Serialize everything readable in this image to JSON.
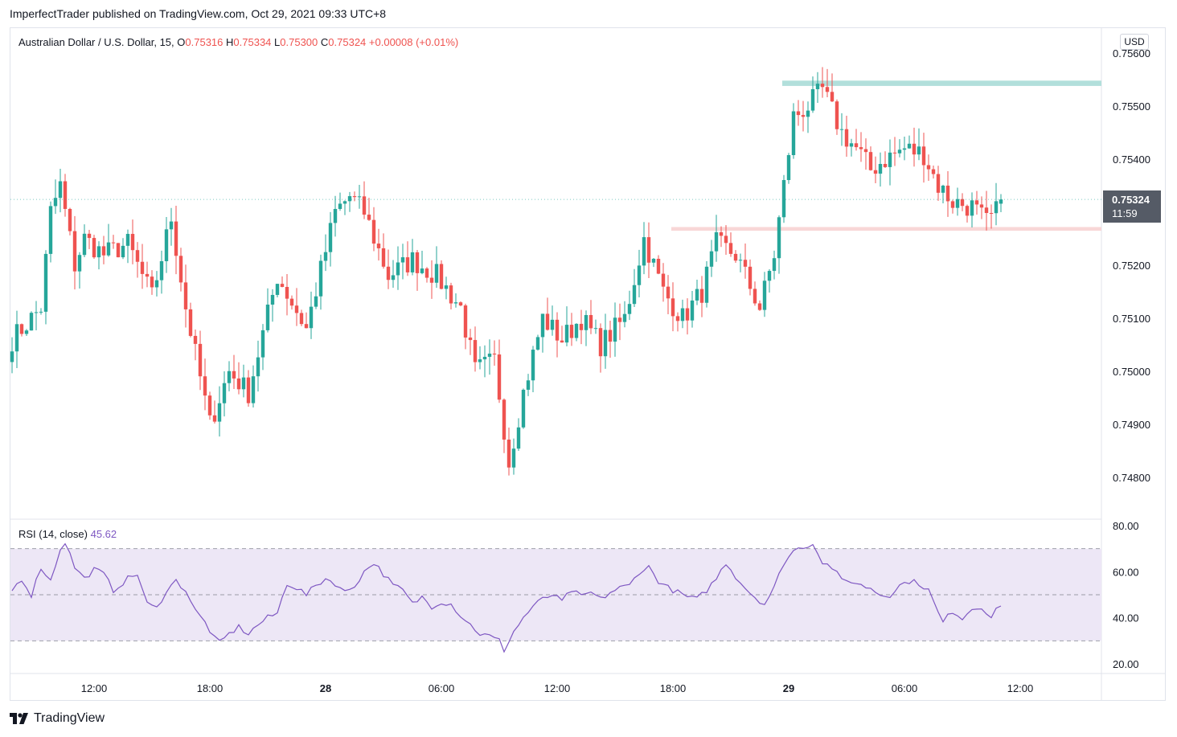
{
  "header": {
    "published_by": "ImperfectTrader published on TradingView.com, Oct 29, 2021 09:33 UTC+8"
  },
  "legend": {
    "symbol": "Australian Dollar / U.S. Dollar, 15,",
    "o_label": "O",
    "o_value": "0.75316",
    "h_label": "H",
    "h_value": "0.75334",
    "l_label": "L",
    "l_value": "0.75300",
    "c_label": "C",
    "c_value": "0.75324",
    "change": "+0.00008 (+0.01%)"
  },
  "currency": "USD",
  "last_price": {
    "price": "0.75324",
    "countdown": "11:59"
  },
  "rsi": {
    "label": "RSI (14, close)",
    "value": "45.62"
  },
  "footer": {
    "brand": "TradingView"
  },
  "colors": {
    "up": "#26a69a",
    "down": "#ef5350",
    "rsi_line": "#7e57c2",
    "rsi_band": "#ede7f6",
    "resistance_zone": "#b2dfdb",
    "support_zone": "#f8d7d7"
  },
  "chart_data": [
    {
      "type": "candlestick",
      "interval": "15",
      "ylim": [
        0.7476,
        0.7561
      ],
      "y_ticks": [
        "0.75600",
        "0.75500",
        "0.75400",
        "0.75300",
        "0.75200",
        "0.75100",
        "0.75000",
        "0.74900",
        "0.74800"
      ],
      "x_ticks": [
        {
          "label": "12:00",
          "i": 17
        },
        {
          "label": "18:00",
          "i": 41
        },
        {
          "label": "28",
          "i": 65,
          "bold": true
        },
        {
          "label": "06:00",
          "i": 89
        },
        {
          "label": "12:00",
          "i": 113
        },
        {
          "label": "18:00",
          "i": 137
        },
        {
          "label": "29",
          "i": 161,
          "bold": true
        },
        {
          "label": "06:00",
          "i": 185
        },
        {
          "label": "12:00",
          "i": 209
        }
      ],
      "zones": [
        {
          "name": "resistance",
          "from": 0.75538,
          "to": 0.75548,
          "start_i": 160
        },
        {
          "name": "support",
          "from": 0.75265,
          "to": 0.75272,
          "start_i": 137
        }
      ],
      "anchors": [
        [
          0,
          0.7506
        ],
        [
          6,
          0.7512
        ],
        [
          8,
          0.753
        ],
        [
          10,
          0.7535
        ],
        [
          13,
          0.752
        ],
        [
          15,
          0.7525
        ],
        [
          19,
          0.7522
        ],
        [
          24,
          0.7524
        ],
        [
          29,
          0.7514
        ],
        [
          33,
          0.7529
        ],
        [
          36,
          0.7512
        ],
        [
          41,
          0.749
        ],
        [
          45,
          0.75
        ],
        [
          49,
          0.7496
        ],
        [
          55,
          0.7518
        ],
        [
          61,
          0.7508
        ],
        [
          67,
          0.753
        ],
        [
          70,
          0.7533
        ],
        [
          73,
          0.753
        ],
        [
          78,
          0.7518
        ],
        [
          83,
          0.7521
        ],
        [
          88,
          0.7518
        ],
        [
          93,
          0.7512
        ],
        [
          96,
          0.75
        ],
        [
          100,
          0.7502
        ],
        [
          103,
          0.7483
        ],
        [
          106,
          0.7496
        ],
        [
          110,
          0.751
        ],
        [
          114,
          0.7506
        ],
        [
          118,
          0.751
        ],
        [
          122,
          0.7505
        ],
        [
          127,
          0.751
        ],
        [
          131,
          0.7525
        ],
        [
          135,
          0.7515
        ],
        [
          139,
          0.751
        ],
        [
          143,
          0.7515
        ],
        [
          146,
          0.7524
        ],
        [
          150,
          0.7522
        ],
        [
          155,
          0.7512
        ],
        [
          158,
          0.7522
        ],
        [
          160,
          0.7535
        ],
        [
          162,
          0.7548
        ],
        [
          165,
          0.755
        ],
        [
          168,
          0.7553
        ],
        [
          170,
          0.7549
        ],
        [
          172,
          0.7545
        ],
        [
          175,
          0.7542
        ],
        [
          178,
          0.7538
        ],
        [
          181,
          0.754
        ],
        [
          185,
          0.7542
        ],
        [
          189,
          0.7541
        ],
        [
          192,
          0.7535
        ],
        [
          195,
          0.7532
        ],
        [
          199,
          0.7531
        ],
        [
          202,
          0.7528
        ],
        [
          204,
          0.753
        ],
        [
          205,
          0.75324
        ]
      ],
      "last": {
        "open": 0.75316,
        "high": 0.75334,
        "low": 0.753,
        "close": 0.75324
      }
    },
    {
      "type": "line",
      "name": "RSI (14, close)",
      "ylim": [
        20,
        80
      ],
      "y_ticks": [
        "80.00",
        "60.00",
        "40.00",
        "20.00"
      ],
      "bands": [
        70,
        50,
        30
      ],
      "anchors": [
        [
          0,
          52
        ],
        [
          2,
          57
        ],
        [
          4,
          50
        ],
        [
          6,
          62
        ],
        [
          8,
          56
        ],
        [
          10,
          70
        ],
        [
          11,
          73
        ],
        [
          13,
          62
        ],
        [
          15,
          57
        ],
        [
          17,
          61
        ],
        [
          19,
          59
        ],
        [
          21,
          52
        ],
        [
          24,
          57
        ],
        [
          26,
          59
        ],
        [
          28,
          46
        ],
        [
          30,
          44
        ],
        [
          32,
          52
        ],
        [
          34,
          56
        ],
        [
          36,
          52
        ],
        [
          38,
          43
        ],
        [
          40,
          38
        ],
        [
          42,
          31
        ],
        [
          43,
          29
        ],
        [
          45,
          33
        ],
        [
          47,
          36
        ],
        [
          49,
          33
        ],
        [
          51,
          37
        ],
        [
          53,
          40
        ],
        [
          55,
          42
        ],
        [
          57,
          55
        ],
        [
          59,
          53
        ],
        [
          61,
          50
        ],
        [
          63,
          54
        ],
        [
          65,
          57
        ],
        [
          67,
          55
        ],
        [
          69,
          51
        ],
        [
          71,
          54
        ],
        [
          73,
          60
        ],
        [
          75,
          64
        ],
        [
          77,
          59
        ],
        [
          79,
          54
        ],
        [
          81,
          52
        ],
        [
          83,
          46
        ],
        [
          85,
          49
        ],
        [
          87,
          45
        ],
        [
          89,
          47
        ],
        [
          91,
          46
        ],
        [
          93,
          41
        ],
        [
          95,
          37
        ],
        [
          97,
          33
        ],
        [
          99,
          32
        ],
        [
          101,
          30
        ],
        [
          102,
          26
        ],
        [
          104,
          34
        ],
        [
          106,
          40
        ],
        [
          108,
          45
        ],
        [
          110,
          48
        ],
        [
          112,
          50
        ],
        [
          114,
          47
        ],
        [
          116,
          52
        ],
        [
          118,
          49
        ],
        [
          120,
          51
        ],
        [
          122,
          48
        ],
        [
          124,
          51
        ],
        [
          126,
          53
        ],
        [
          128,
          54
        ],
        [
          130,
          60
        ],
        [
          132,
          62
        ],
        [
          134,
          56
        ],
        [
          136,
          53
        ],
        [
          138,
          51
        ],
        [
          140,
          49
        ],
        [
          142,
          48
        ],
        [
          144,
          52
        ],
        [
          146,
          57
        ],
        [
          148,
          64
        ],
        [
          150,
          58
        ],
        [
          152,
          53
        ],
        [
          154,
          49
        ],
        [
          156,
          46
        ],
        [
          158,
          53
        ],
        [
          160,
          64
        ],
        [
          162,
          69
        ],
        [
          164,
          71
        ],
        [
          166,
          72
        ],
        [
          167,
          69
        ],
        [
          168,
          64
        ],
        [
          170,
          62
        ],
        [
          172,
          56
        ],
        [
          174,
          56
        ],
        [
          176,
          54
        ],
        [
          178,
          53
        ],
        [
          180,
          50
        ],
        [
          182,
          50
        ],
        [
          184,
          54
        ],
        [
          186,
          56
        ],
        [
          188,
          55
        ],
        [
          190,
          52
        ],
        [
          192,
          42
        ],
        [
          193,
          38
        ],
        [
          195,
          43
        ],
        [
          197,
          40
        ],
        [
          199,
          44
        ],
        [
          201,
          45
        ],
        [
          203,
          40
        ],
        [
          205,
          46
        ]
      ]
    }
  ]
}
